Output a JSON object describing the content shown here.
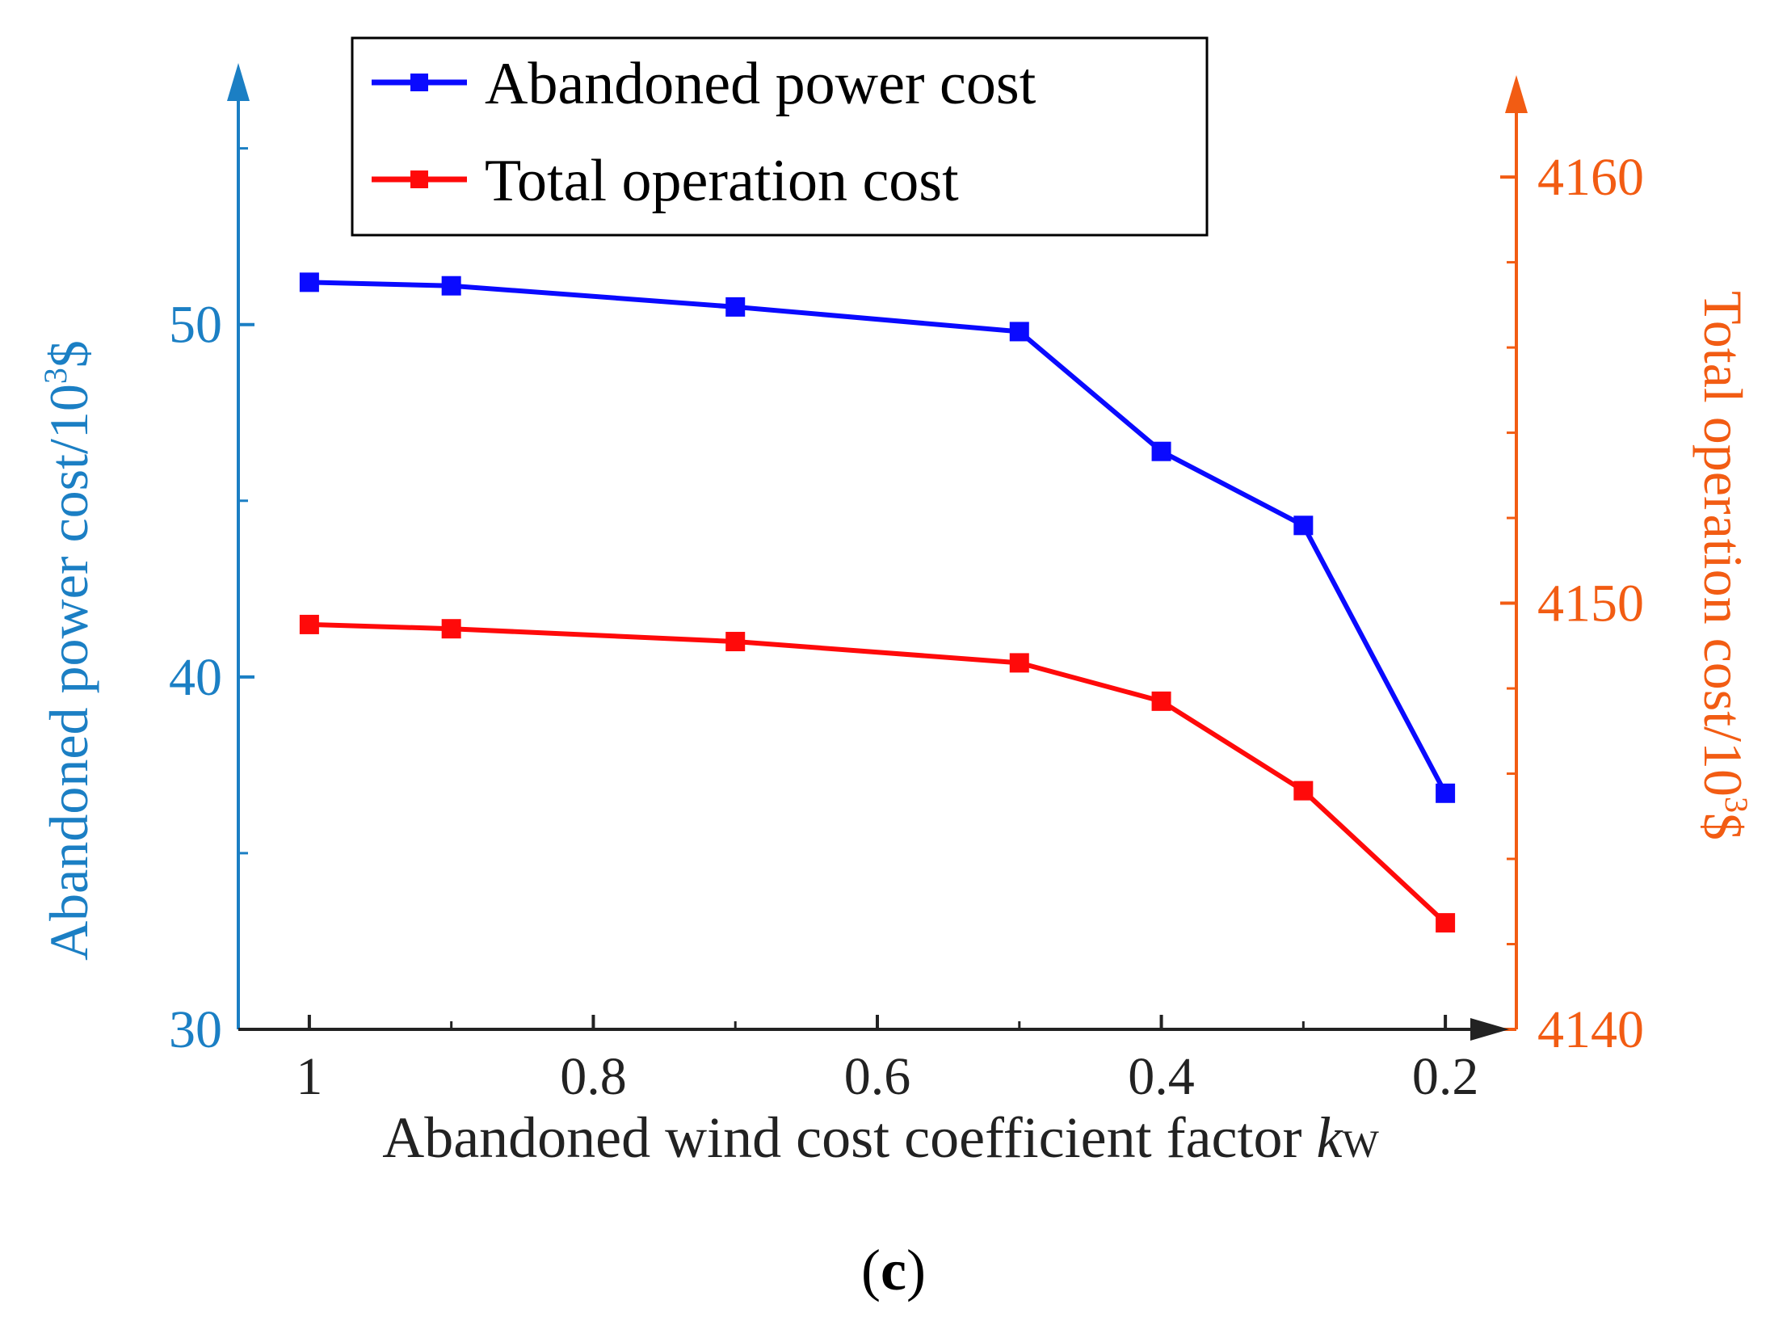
{
  "chart_data": {
    "type": "line",
    "x": [
      1,
      0.9,
      0.7,
      0.5,
      0.4,
      0.3,
      0.2
    ],
    "x_tick_values": [
      1,
      0.8,
      0.6,
      0.4,
      0.2
    ],
    "x_tick_labels": [
      "1",
      "0.8",
      "0.6",
      "0.4",
      "0.2"
    ],
    "xlim": [
      1.05,
      0.15
    ],
    "xlabel": "Abandoned wind cost coefficient factor ",
    "xlabel_var": "k",
    "xlabel_sub": "W",
    "left_axis": {
      "label": "Abandoned power cost/10",
      "label_exp": "3",
      "label_unit": "$",
      "ylim": [
        30,
        56
      ],
      "major_ticks": [
        30,
        40,
        50
      ],
      "major_labels": [
        "30",
        "40",
        "50"
      ],
      "minor_ticks": [
        35,
        45,
        55
      ],
      "color": "#1b7fc4"
    },
    "right_axis": {
      "label": "Total operation cost/10",
      "label_exp": "3",
      "label_unit": "$",
      "ylim": [
        4140,
        4161.5
      ],
      "major_ticks": [
        4140,
        4150,
        4160
      ],
      "major_labels": [
        "4140",
        "4150",
        "4160"
      ],
      "minor_ticks": [
        4142,
        4144,
        4146,
        4148,
        4152,
        4154,
        4156,
        4158
      ],
      "color": "#f25c13"
    },
    "series": [
      {
        "name": "Abandoned power cost",
        "axis": "left",
        "color": "#0a0aff",
        "values": [
          51.2,
          51.1,
          50.5,
          49.8,
          46.4,
          44.3,
          36.7
        ]
      },
      {
        "name": "Total operation cost",
        "axis": "right",
        "color": "#ff0a0a",
        "values": [
          4149.5,
          4149.4,
          4149.1,
          4148.6,
          4147.7,
          4145.6,
          4142.5
        ]
      }
    ],
    "legend_position": "top-center",
    "grid": false
  },
  "caption": {
    "open": "(",
    "letter": "c",
    "close": ")"
  }
}
